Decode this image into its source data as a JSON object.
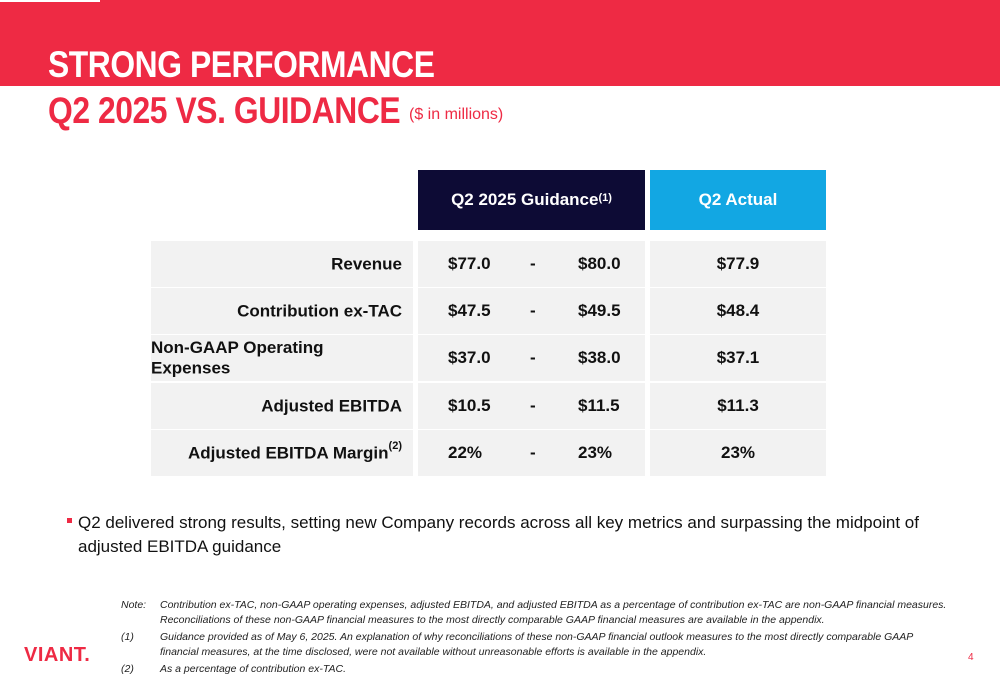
{
  "header": {
    "title_line1": "STRONG PERFORMANCE",
    "title_line2": "Q2 2025 VS. GUIDANCE",
    "subtitle": "($ in millions)"
  },
  "table": {
    "guidance_header": "Q2 2025 Guidance",
    "guidance_header_sup": "(1)",
    "actual_header": "Q2 Actual",
    "rows": [
      {
        "label": "Revenue",
        "sup": "",
        "low": "$77.0",
        "dash": "-",
        "high": "$80.0",
        "actual": "$77.9"
      },
      {
        "label": "Contribution ex-TAC",
        "sup": "",
        "low": "$47.5",
        "dash": "-",
        "high": "$49.5",
        "actual": "$48.4"
      },
      {
        "label": "Non-GAAP Operating Expenses",
        "sup": "",
        "low": "$37.0",
        "dash": "-",
        "high": "$38.0",
        "actual": "$37.1"
      },
      {
        "label": "Adjusted EBITDA",
        "sup": "",
        "low": "$10.5",
        "dash": "-",
        "high": "$11.5",
        "actual": "$11.3"
      },
      {
        "label": "Adjusted EBITDA Margin",
        "sup": "(2)",
        "low": "22%",
        "dash": "-",
        "high": "23%",
        "actual": "23%"
      }
    ]
  },
  "bullet": "Q2 delivered strong results, setting new Company records across all key metrics and surpassing the midpoint of adjusted EBITDA guidance",
  "notes": [
    {
      "key": "Note:",
      "lines": [
        "Contribution ex-TAC, non-GAAP operating expenses, adjusted EBITDA, and adjusted EBITDA as a percentage of contribution ex-TAC are non-GAAP financial measures.",
        "Reconciliations of these non-GAAP financial measures to the most directly comparable GAAP financial measures are available in the appendix."
      ]
    },
    {
      "key": "(1)",
      "lines": [
        "Guidance provided as of May 6, 2025. An explanation of why reconciliations of these non-GAAP financial outlook measures to the most directly comparable GAAP",
        "financial measures, at the time disclosed, were not available without unreasonable efforts is available in the appendix."
      ]
    },
    {
      "key": "(2)",
      "lines": [
        "As a percentage of contribution ex-TAC."
      ]
    }
  ],
  "logo": "VIANT.",
  "page_number": "4",
  "colors": {
    "brand_red": "#ee2a44",
    "navy": "#0d0b35",
    "blue": "#12a7e3",
    "row_gray": "#f2f2f2"
  }
}
